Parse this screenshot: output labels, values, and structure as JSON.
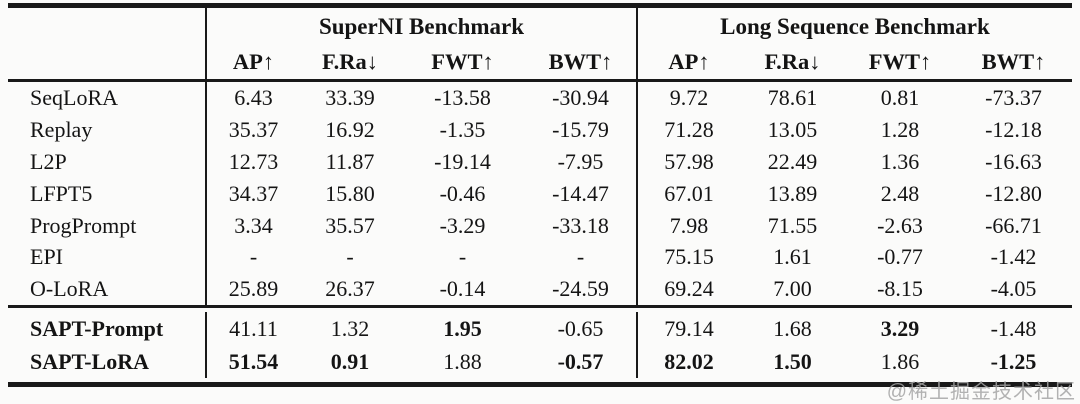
{
  "watermark": "@稀土掘金技术社区",
  "table": {
    "groups": [
      {
        "title": "SuperNI Benchmark"
      },
      {
        "title": "Long Sequence Benchmark"
      }
    ],
    "metrics": [
      "AP↑",
      "F.Ra↓",
      "FWT↑",
      "BWT↑"
    ],
    "rows": [
      {
        "label": "SeqLoRA",
        "bold_label": false,
        "bold": [],
        "cells": [
          "6.43",
          "33.39",
          "-13.58",
          "-30.94",
          "9.72",
          "78.61",
          "0.81",
          "-73.37"
        ]
      },
      {
        "label": "Replay",
        "bold_label": false,
        "bold": [],
        "cells": [
          "35.37",
          "16.92",
          "-1.35",
          "-15.79",
          "71.28",
          "13.05",
          "1.28",
          "-12.18"
        ]
      },
      {
        "label": "L2P",
        "bold_label": false,
        "bold": [],
        "cells": [
          "12.73",
          "11.87",
          "-19.14",
          "-7.95",
          "57.98",
          "22.49",
          "1.36",
          "-16.63"
        ]
      },
      {
        "label": "LFPT5",
        "bold_label": false,
        "bold": [],
        "cells": [
          "34.37",
          "15.80",
          "-0.46",
          "-14.47",
          "67.01",
          "13.89",
          "2.48",
          "-12.80"
        ]
      },
      {
        "label": "ProgPrompt",
        "bold_label": false,
        "bold": [],
        "cells": [
          "3.34",
          "35.57",
          "-3.29",
          "-33.18",
          "7.98",
          "71.55",
          "-2.63",
          "-66.71"
        ]
      },
      {
        "label": "EPI",
        "bold_label": false,
        "bold": [],
        "cells": [
          "-",
          "-",
          "-",
          "-",
          "75.15",
          "1.61",
          "-0.77",
          "-1.42"
        ]
      },
      {
        "label": "O-LoRA",
        "bold_label": false,
        "bold": [],
        "cells": [
          "25.89",
          "26.37",
          "-0.14",
          "-24.59",
          "69.24",
          "7.00",
          "-8.15",
          "-4.05"
        ]
      }
    ],
    "sapt_rows": [
      {
        "label": "SAPT-Prompt",
        "bold_label": true,
        "bold": [
          2,
          6
        ],
        "cells": [
          "41.11",
          "1.32",
          "1.95",
          "-0.65",
          "79.14",
          "1.68",
          "3.29",
          "-1.48"
        ]
      },
      {
        "label": "SAPT-LoRA",
        "bold_label": true,
        "bold": [
          0,
          1,
          3,
          4,
          5,
          7
        ],
        "cells": [
          "51.54",
          "0.91",
          "1.88",
          "-0.57",
          "82.02",
          "1.50",
          "1.86",
          "-1.25"
        ]
      }
    ]
  }
}
